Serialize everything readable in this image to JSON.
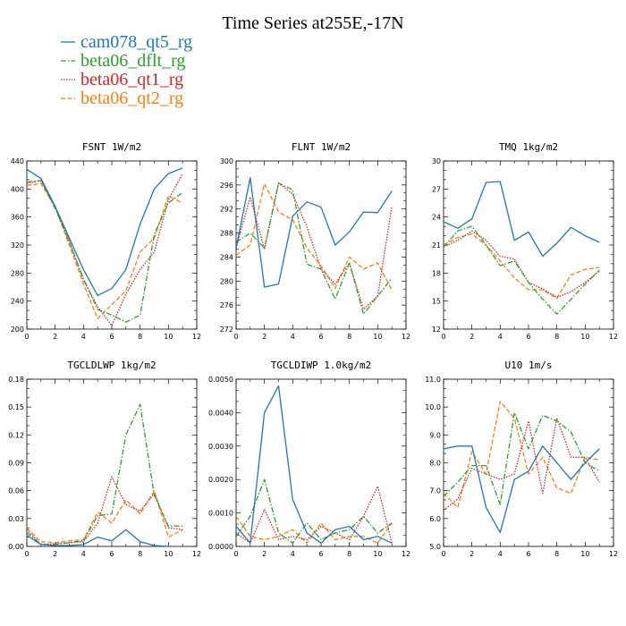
{
  "title": "Time Series at255E,-17N",
  "colors": {
    "cam078_qt5_rg": "#1f77b4",
    "beta06_dflt_rg": "#2ca02c",
    "beta06_qt1_rg": "#d62728",
    "beta06_qt2_rg": "#ff7f0e"
  },
  "legend": [
    {
      "name": "cam078_qt5_rg",
      "style": "solid"
    },
    {
      "name": "beta06_dflt_rg",
      "style": "dashdot"
    },
    {
      "name": "beta06_qt1_rg",
      "style": "dotted"
    },
    {
      "name": "beta06_qt2_rg",
      "style": "dashed"
    }
  ],
  "chart_data": [
    {
      "type": "line",
      "title": "FSNT",
      "units": "1W/m2",
      "x": [
        0,
        1,
        2,
        3,
        4,
        5,
        6,
        7,
        8,
        9,
        10,
        11
      ],
      "xlim": [
        0,
        12
      ],
      "xticks": [
        "0",
        "2",
        "4",
        "6",
        "8",
        "10",
        "12"
      ],
      "ylim": [
        200,
        440
      ],
      "yticks": [
        "200",
        "240",
        "280",
        "320",
        "360",
        "400",
        "440"
      ],
      "series": [
        {
          "name": "cam078_qt5_rg",
          "values": [
            428,
            415,
            375,
            330,
            285,
            248,
            258,
            285,
            350,
            400,
            422,
            430
          ]
        },
        {
          "name": "beta06_dflt_rg",
          "values": [
            410,
            412,
            372,
            325,
            272,
            228,
            220,
            210,
            220,
            335,
            380,
            395
          ]
        },
        {
          "name": "beta06_qt1_rg",
          "values": [
            408,
            412,
            375,
            325,
            270,
            232,
            205,
            250,
            285,
            310,
            385,
            422
          ]
        },
        {
          "name": "beta06_qt2_rg",
          "values": [
            405,
            408,
            374,
            320,
            265,
            215,
            235,
            255,
            310,
            330,
            390,
            380
          ]
        }
      ]
    },
    {
      "type": "line",
      "title": "FLNT",
      "units": "1W/m2",
      "x": [
        0,
        1,
        2,
        3,
        4,
        5,
        6,
        7,
        8,
        9,
        10,
        11
      ],
      "xlim": [
        0,
        12
      ],
      "xticks": [
        "0",
        "2",
        "4",
        "6",
        "8",
        "10",
        "12"
      ],
      "ylim": [
        272,
        300
      ],
      "yticks": [
        "272",
        "276",
        "280",
        "284",
        "288",
        "292",
        "296",
        "300"
      ],
      "series": [
        {
          "name": "cam078_qt5_rg",
          "values": [
            285.5,
            297.2,
            279.0,
            279.5,
            290.8,
            293.2,
            292.3,
            286.0,
            288.2,
            291.5,
            291.4,
            295.0
          ]
        },
        {
          "name": "beta06_dflt_rg",
          "values": [
            286.5,
            288.0,
            285.5,
            296.3,
            295.2,
            282.8,
            282.0,
            277.0,
            283.0,
            274.5,
            277.5,
            280.5
          ]
        },
        {
          "name": "beta06_qt1_rg",
          "values": [
            285.5,
            294.0,
            285.3,
            296.3,
            294.5,
            289.0,
            282.0,
            279.5,
            283.0,
            275.3,
            277.5,
            292.5
          ]
        },
        {
          "name": "beta06_qt2_rg",
          "values": [
            284.3,
            286.0,
            296.2,
            291.5,
            290.2,
            285.5,
            282.5,
            278.8,
            284.0,
            282.0,
            283.0,
            278.5
          ]
        }
      ]
    },
    {
      "type": "line",
      "title": "TMQ",
      "units": "1kg/m2",
      "x": [
        0,
        1,
        2,
        3,
        4,
        5,
        6,
        7,
        8,
        9,
        10,
        11
      ],
      "xlim": [
        0,
        12
      ],
      "xticks": [
        "0",
        "2",
        "4",
        "6",
        "8",
        "10",
        "12"
      ],
      "ylim": [
        12,
        30
      ],
      "yticks": [
        "12",
        "15",
        "18",
        "21",
        "24",
        "27",
        "30"
      ],
      "series": [
        {
          "name": "cam078_qt5_rg",
          "values": [
            23.5,
            22.8,
            23.8,
            27.7,
            27.8,
            21.5,
            22.4,
            19.8,
            21.2,
            22.9,
            22.0,
            21.3
          ]
        },
        {
          "name": "beta06_dflt_rg",
          "values": [
            20.8,
            22.5,
            23.0,
            21.0,
            18.8,
            19.3,
            17.0,
            15.2,
            13.6,
            15.2,
            16.8,
            18.3
          ]
        },
        {
          "name": "beta06_qt1_rg",
          "values": [
            20.8,
            21.5,
            22.5,
            21.5,
            19.8,
            19.5,
            17.0,
            16.3,
            15.4,
            16.0,
            17.0,
            18.2
          ]
        },
        {
          "name": "beta06_qt2_rg",
          "values": [
            21.0,
            21.8,
            22.2,
            21.0,
            19.3,
            17.5,
            16.2,
            16.2,
            15.3,
            17.8,
            18.4,
            18.6
          ]
        }
      ]
    },
    {
      "type": "line",
      "title": "TGCLDLWP",
      "units": "1kg/m2",
      "x": [
        0,
        1,
        2,
        3,
        4,
        5,
        6,
        7,
        8,
        9,
        10,
        11
      ],
      "xlim": [
        0,
        12
      ],
      "xticks": [
        "0",
        "2",
        "4",
        "6",
        "8",
        "10",
        "12"
      ],
      "ylim": [
        0,
        0.18
      ],
      "yticks": [
        "0.00",
        "0.03",
        "0.06",
        "0.09",
        "0.12",
        "0.15",
        "0.18"
      ],
      "series": [
        {
          "name": "cam078_qt5_rg",
          "values": [
            0.012,
            0.002,
            0.001,
            0.001,
            0.002,
            0.01,
            0.006,
            0.018,
            0.005,
            0.001,
            0.0,
            0.0
          ]
        },
        {
          "name": "beta06_dflt_rg",
          "values": [
            0.015,
            0.002,
            0.002,
            0.004,
            0.006,
            0.033,
            0.035,
            0.12,
            0.153,
            0.055,
            0.022,
            0.022
          ]
        },
        {
          "name": "beta06_qt1_rg",
          "values": [
            0.018,
            0.002,
            0.003,
            0.004,
            0.005,
            0.025,
            0.075,
            0.045,
            0.038,
            0.057,
            0.02,
            0.018
          ]
        },
        {
          "name": "beta06_qt2_rg",
          "values": [
            0.02,
            0.005,
            0.004,
            0.006,
            0.007,
            0.037,
            0.025,
            0.05,
            0.035,
            0.06,
            0.01,
            0.018
          ]
        }
      ]
    },
    {
      "type": "line",
      "title": "TGCLDIWP",
      "units": "1.0kg/m2",
      "x": [
        0,
        1,
        2,
        3,
        4,
        5,
        6,
        7,
        8,
        9,
        10,
        11
      ],
      "xlim": [
        0,
        12
      ],
      "xticks": [
        "0",
        "2",
        "4",
        "6",
        "8",
        "10",
        "12"
      ],
      "ylim": [
        0,
        0.005
      ],
      "yticks": [
        "0.0000",
        "0.0010",
        "0.0020",
        "0.0030",
        "0.0040",
        "0.0050"
      ],
      "series": [
        {
          "name": "cam078_qt5_rg",
          "values": [
            0.0006,
            0.0001,
            0.004,
            0.0048,
            0.0014,
            0.0004,
            0.0001,
            0.0005,
            0.0006,
            0.0002,
            0.0003,
            0.0001
          ]
        },
        {
          "name": "beta06_dflt_rg",
          "values": [
            0.0003,
            0.0009,
            0.002,
            0.0004,
            0.0001,
            0.0007,
            0.0002,
            0.0004,
            0.0005,
            0.0009,
            0.0004,
            0.0007
          ]
        },
        {
          "name": "beta06_qt1_rg",
          "values": [
            0.0004,
            0.0001,
            0.0011,
            0.0002,
            0.0003,
            0.0002,
            0.0006,
            0.0004,
            0.0002,
            0.0009,
            0.0018,
            0.0001
          ]
        },
        {
          "name": "beta06_qt2_rg",
          "values": [
            0.0009,
            0.0003,
            0.0002,
            0.0003,
            0.0005,
            0.0001,
            0.0007,
            0.0002,
            0.0003,
            0.0003,
            0.0001,
            0.0007
          ]
        }
      ]
    },
    {
      "type": "line",
      "title": "U10",
      "units": "1m/s",
      "x": [
        0,
        1,
        2,
        3,
        4,
        5,
        6,
        7,
        8,
        9,
        10,
        11
      ],
      "xlim": [
        0,
        12
      ],
      "xticks": [
        "0",
        "2",
        "4",
        "6",
        "8",
        "10",
        "12"
      ],
      "ylim": [
        5,
        11
      ],
      "yticks": [
        "5.0",
        "6.0",
        "7.0",
        "8.0",
        "9.0",
        "10.0",
        "11.0"
      ],
      "series": [
        {
          "name": "cam078_qt5_rg",
          "values": [
            8.5,
            8.6,
            8.6,
            6.4,
            5.5,
            7.4,
            7.7,
            8.6,
            8.0,
            7.4,
            8.0,
            8.5
          ]
        },
        {
          "name": "beta06_dflt_rg",
          "values": [
            6.8,
            7.3,
            7.9,
            7.9,
            6.5,
            9.8,
            8.5,
            9.7,
            9.5,
            9.1,
            8.0,
            7.7
          ]
        },
        {
          "name": "beta06_qt1_rg",
          "values": [
            6.3,
            6.7,
            7.8,
            7.6,
            7.4,
            7.6,
            9.5,
            6.9,
            9.6,
            8.2,
            8.2,
            7.3
          ]
        },
        {
          "name": "beta06_qt2_rg",
          "values": [
            6.9,
            6.4,
            8.4,
            7.6,
            10.2,
            9.6,
            7.6,
            8.2,
            7.1,
            6.9,
            8.2,
            8.1
          ]
        }
      ]
    }
  ]
}
